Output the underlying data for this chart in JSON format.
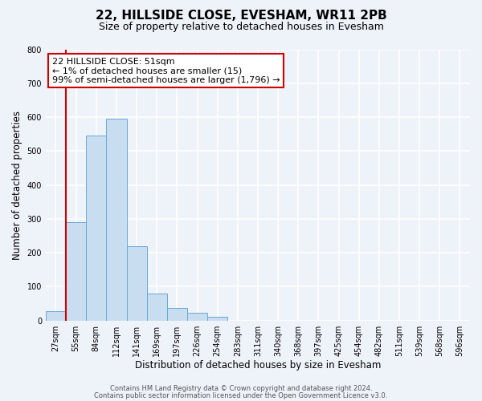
{
  "title": "22, HILLSIDE CLOSE, EVESHAM, WR11 2PB",
  "subtitle": "Size of property relative to detached houses in Evesham",
  "xlabel": "Distribution of detached houses by size in Evesham",
  "ylabel": "Number of detached properties",
  "bar_labels": [
    "27sqm",
    "55sqm",
    "84sqm",
    "112sqm",
    "141sqm",
    "169sqm",
    "197sqm",
    "226sqm",
    "254sqm",
    "283sqm",
    "311sqm",
    "340sqm",
    "368sqm",
    "397sqm",
    "425sqm",
    "454sqm",
    "482sqm",
    "511sqm",
    "539sqm",
    "568sqm",
    "596sqm"
  ],
  "bar_values": [
    27,
    290,
    545,
    595,
    220,
    80,
    37,
    22,
    10,
    0,
    0,
    0,
    0,
    0,
    0,
    0,
    0,
    0,
    0,
    0,
    0
  ],
  "bar_color": "#c9ddf0",
  "bar_edge_color": "#6aaad4",
  "ylim": [
    0,
    800
  ],
  "yticks": [
    0,
    100,
    200,
    300,
    400,
    500,
    600,
    700,
    800
  ],
  "marker_color": "#cc0000",
  "annotation_title": "22 HILLSIDE CLOSE: 51sqm",
  "annotation_line1": "← 1% of detached houses are smaller (15)",
  "annotation_line2": "99% of semi-detached houses are larger (1,796) →",
  "footer1": "Contains HM Land Registry data © Crown copyright and database right 2024.",
  "footer2": "Contains public sector information licensed under the Open Government Licence v3.0.",
  "background_color": "#eef2f9",
  "grid_color": "#ffffff",
  "title_fontsize": 11,
  "subtitle_fontsize": 9,
  "tick_fontsize": 7,
  "ylabel_fontsize": 8.5,
  "xlabel_fontsize": 8.5,
  "annotation_fontsize": 8,
  "footer_fontsize": 6
}
